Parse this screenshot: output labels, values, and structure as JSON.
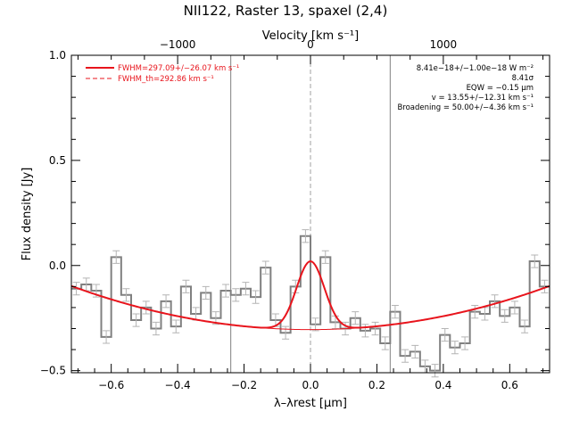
{
  "chart_data": {
    "type": "line",
    "title": "NII122, Raster 13, spaxel (2,4)",
    "xlabel": "λ–λrest [μm]",
    "ylabel": "Flux density [Jy]",
    "top_axis_label": "Velocity [km s⁻¹]",
    "xlim": [
      -0.72,
      0.72
    ],
    "ylim": [
      -0.51,
      1.0
    ],
    "xticks": [
      -0.6,
      -0.4,
      -0.2,
      0.0,
      0.2,
      0.4,
      0.6
    ],
    "xtick_labels": [
      "−0.6",
      "−0.4",
      "−0.2",
      "0.0",
      "0.2",
      "0.4",
      "0.6"
    ],
    "yticks": [
      -0.5,
      0.0,
      0.5,
      1.0
    ],
    "ytick_labels": [
      "−0.5",
      "0.0",
      "0.5",
      "1.0"
    ],
    "top_ticks_velocity": [
      -1000,
      0,
      1000
    ],
    "top_tick_labels": [
      "−1000",
      "0",
      "1000"
    ],
    "top_ticks_x": [
      -0.4,
      0.0,
      0.4
    ],
    "legend": [
      {
        "label": "FWHM=297.09+/−26.07 km s⁻¹",
        "style": "solid",
        "color": "#e8141c"
      },
      {
        "label": "FWHM_th=292.86 km s⁻¹",
        "style": "dashed",
        "color": "#e8141c"
      }
    ],
    "annotations": [
      "8.41e−18+/−1.00e−18 W m⁻²",
      "8.41σ",
      "EQW = −0.15 μm",
      "v = 13.55+/−12.31 km s⁻¹",
      "Broadening = 50.00+/−4.36 km s⁻¹"
    ],
    "vertical_lines": [
      {
        "x": -0.24,
        "style": "solid",
        "color": "#808080"
      },
      {
        "x": 0.0,
        "style": "dashed",
        "color": "#a0a0a0"
      },
      {
        "x": 0.24,
        "style": "solid",
        "color": "#808080"
      }
    ],
    "series": [
      {
        "name": "data",
        "kind": "step",
        "color": "#808080",
        "error": 0.03,
        "x": [
          -0.705,
          -0.675,
          -0.645,
          -0.615,
          -0.585,
          -0.555,
          -0.525,
          -0.495,
          -0.465,
          -0.435,
          -0.405,
          -0.375,
          -0.345,
          -0.315,
          -0.285,
          -0.255,
          -0.225,
          -0.195,
          -0.165,
          -0.135,
          -0.105,
          -0.075,
          -0.045,
          -0.015,
          0.015,
          0.045,
          0.075,
          0.105,
          0.135,
          0.165,
          0.195,
          0.225,
          0.255,
          0.285,
          0.315,
          0.345,
          0.375,
          0.405,
          0.435,
          0.465,
          0.495,
          0.525,
          0.555,
          0.585,
          0.615,
          0.645,
          0.675,
          0.705
        ],
        "y": [
          -0.11,
          -0.09,
          -0.12,
          -0.34,
          0.04,
          -0.14,
          -0.26,
          -0.2,
          -0.3,
          -0.17,
          -0.29,
          -0.1,
          -0.23,
          -0.13,
          -0.25,
          -0.12,
          -0.14,
          -0.11,
          -0.15,
          -0.01,
          -0.26,
          -0.32,
          -0.1,
          0.14,
          -0.28,
          0.04,
          -0.27,
          -0.3,
          -0.25,
          -0.31,
          -0.3,
          -0.37,
          -0.22,
          -0.43,
          -0.41,
          -0.48,
          -0.5,
          -0.33,
          -0.39,
          -0.37,
          -0.22,
          -0.23,
          -0.17,
          -0.24,
          -0.2,
          -0.29,
          0.02,
          -0.1
        ]
      },
      {
        "name": "FWHM=297.09+/−26.07 km s⁻¹",
        "kind": "fit",
        "color": "#e8141c",
        "baseline": [
          -0.305,
          0.0,
          0.4
        ],
        "amplitude": 0.325,
        "center": 0.0,
        "sigma": 0.042
      },
      {
        "name": "FWHM_th=292.86 km s⁻¹",
        "kind": "baseline",
        "color": "#e8141c",
        "baseline": [
          -0.305,
          0.0,
          0.4
        ]
      }
    ]
  }
}
